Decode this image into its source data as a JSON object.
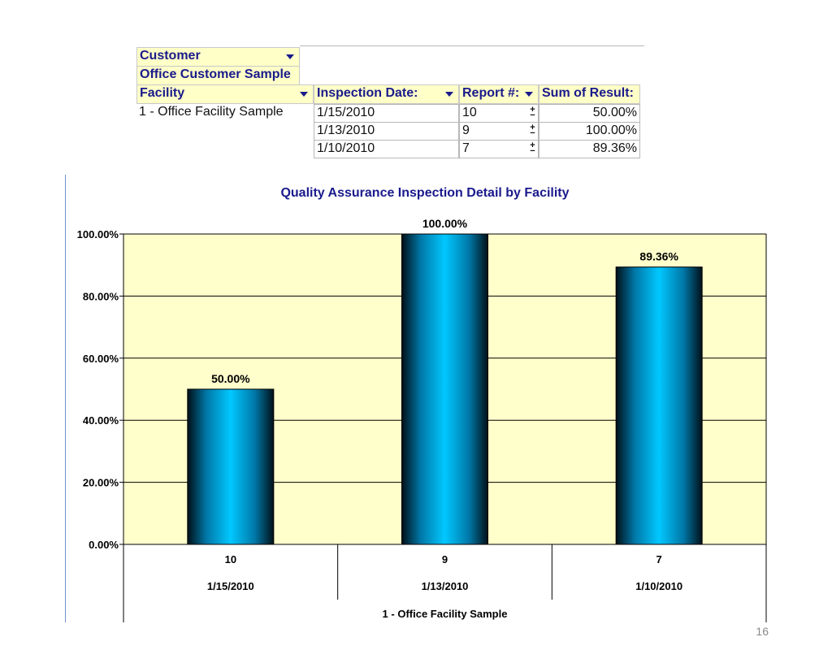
{
  "pivot": {
    "customer_label": "Customer",
    "customer_value": "Office Customer Sample",
    "facility_label": "Facility",
    "facility_value": "1 - Office Facility Sample",
    "columns": [
      "Inspection Date:",
      "Report #:",
      "Sum of Result:"
    ],
    "rows": [
      {
        "date": "1/15/2010",
        "report": "10",
        "result": "50.00%"
      },
      {
        "date": "1/13/2010",
        "report": "9",
        "result": "100.00%"
      },
      {
        "date": "1/10/2010",
        "report": "7",
        "result": "89.36%"
      }
    ],
    "expand_icon": "plus-minus-icon",
    "dropdown_icon": "dropdown-arrow-icon"
  },
  "chart_data": {
    "type": "bar",
    "title": "Quality Assurance Inspection Detail by Facility",
    "categories": [
      "10",
      "9",
      "7"
    ],
    "category_dates": [
      "1/15/2010",
      "1/13/2010",
      "1/10/2010"
    ],
    "group_label": "1 - Office Facility Sample",
    "values": [
      50.0,
      100.0,
      89.36
    ],
    "data_labels": [
      "50.00%",
      "100.00%",
      "89.36%"
    ],
    "ylim": [
      0,
      100
    ],
    "yticks": [
      "0.00%",
      "20.00%",
      "40.00%",
      "60.00%",
      "80.00%",
      "100.00%"
    ],
    "grid": true,
    "plot_bg": "#ffffcc",
    "bar_color": "#00c0f0",
    "title_color": "#1a1a8c"
  },
  "page_number": "16"
}
